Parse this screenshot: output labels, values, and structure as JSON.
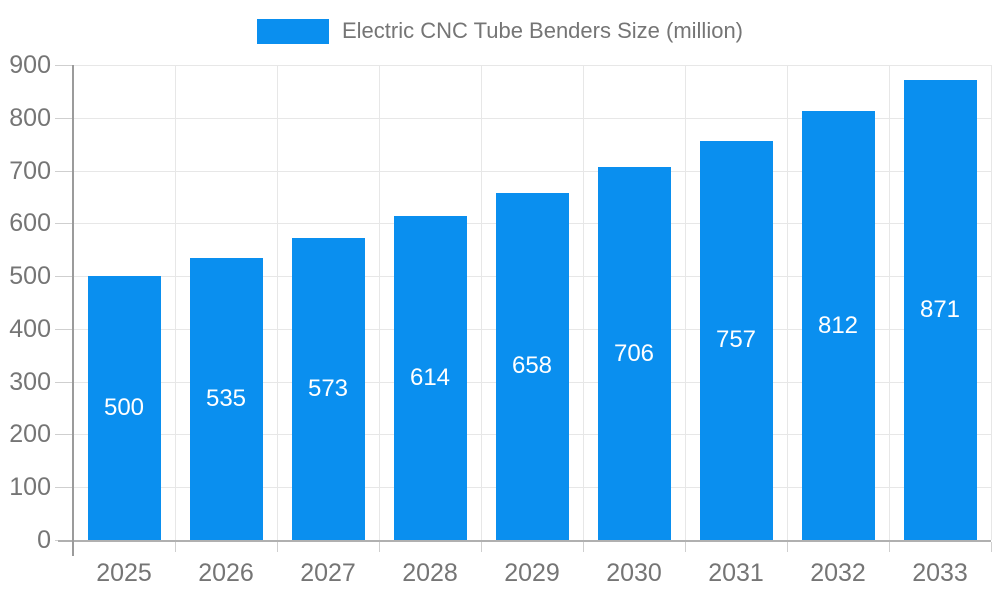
{
  "chart_data": {
    "type": "bar",
    "title": "",
    "legend_label": "Electric CNC Tube Benders Size (million)",
    "legend_position": "top",
    "categories": [
      "2025",
      "2026",
      "2027",
      "2028",
      "2029",
      "2030",
      "2031",
      "2032",
      "2033"
    ],
    "values": [
      500,
      535,
      573,
      614,
      658,
      706,
      757,
      812,
      871
    ],
    "xlabel": "",
    "ylabel": "",
    "ylim": [
      0,
      900
    ],
    "yticks": [
      0,
      100,
      200,
      300,
      400,
      500,
      600,
      700,
      800,
      900
    ],
    "grid": true,
    "bar_labels_inside": true
  },
  "style": {
    "bar_color": "#0a8fef",
    "bar_label_color": "#ffffff",
    "axis_text_color": "#757575",
    "legend_text_color": "#757575",
    "gridline_color": "#e7e7e7",
    "axis_line_color": "#9b9b9b",
    "baseline_color": "#b0b0b0",
    "tick_color": "#cfcfcf",
    "background_color": "#ffffff"
  }
}
